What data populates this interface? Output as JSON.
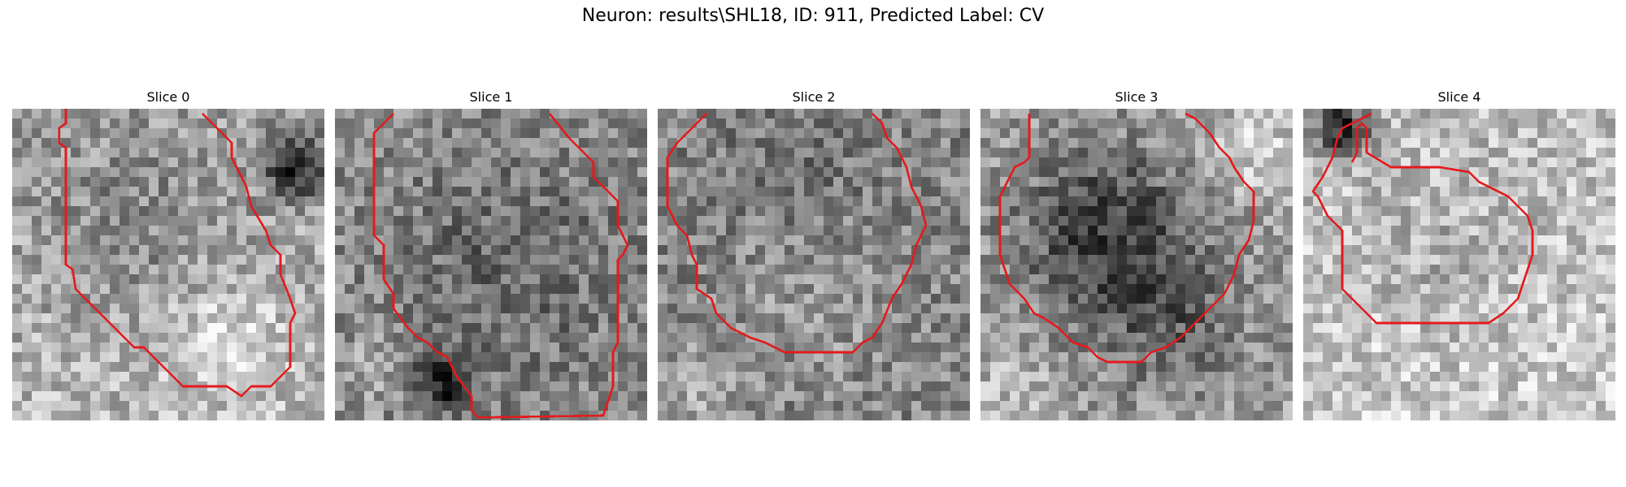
{
  "figure": {
    "title": "Neuron: results\\SHL18, ID: 911, Predicted Label: CV"
  },
  "contour_color": "#e41a1c",
  "panels": [
    {
      "title": "Slice 0"
    },
    {
      "title": "Slice 1"
    },
    {
      "title": "Slice 2"
    },
    {
      "title": "Slice 3"
    },
    {
      "title": "Slice 4"
    }
  ]
}
